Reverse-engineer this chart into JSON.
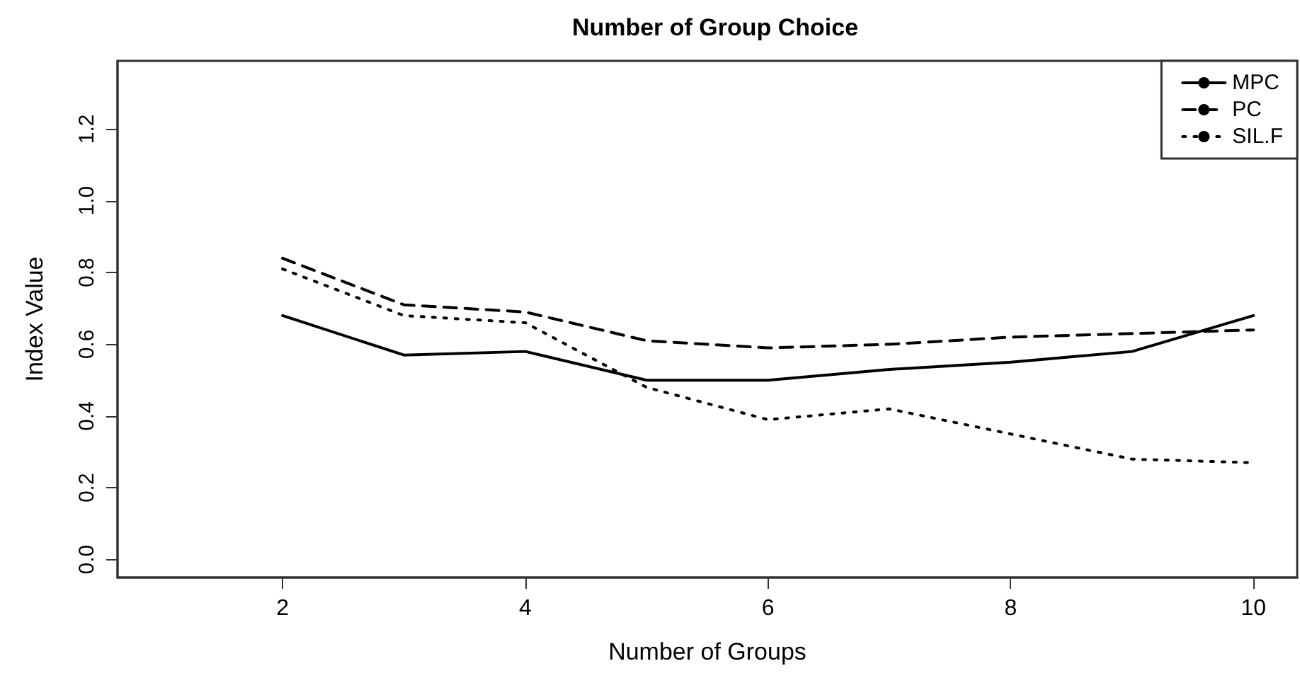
{
  "chart_data": {
    "type": "line",
    "title": "Number of Group Choice",
    "xlabel": "Number of Groups",
    "ylabel": "Index Value",
    "x": [
      2,
      3,
      4,
      5,
      6,
      7,
      8,
      9,
      10
    ],
    "series": [
      {
        "name": "MPC",
        "color": "#000000",
        "line_style": "solid",
        "values": [
          0.68,
          0.57,
          0.58,
          0.5,
          0.5,
          0.53,
          0.55,
          0.58,
          0.68
        ]
      },
      {
        "name": "PC",
        "color": "#000000",
        "line_style": "dashed",
        "values": [
          0.84,
          0.71,
          0.69,
          0.61,
          0.59,
          0.6,
          0.62,
          0.63,
          0.64
        ]
      },
      {
        "name": "SIL.F",
        "color": "#000000",
        "line_style": "dotted",
        "values": [
          0.81,
          0.68,
          0.66,
          0.48,
          0.39,
          0.42,
          0.35,
          0.28,
          0.27
        ]
      }
    ],
    "xlim": [
      0.64,
      10.36
    ],
    "xticks": [
      2,
      4,
      6,
      8,
      10
    ],
    "ylim": [
      -0.05,
      1.39
    ],
    "yticks": [
      {
        "value": 0,
        "label": "0.0"
      },
      0.2,
      0.4,
      0.6,
      0.8,
      {
        "value": 1,
        "label": "1.0"
      },
      1.2
    ],
    "grid": false,
    "legend": "top right",
    "marker": "none"
  }
}
